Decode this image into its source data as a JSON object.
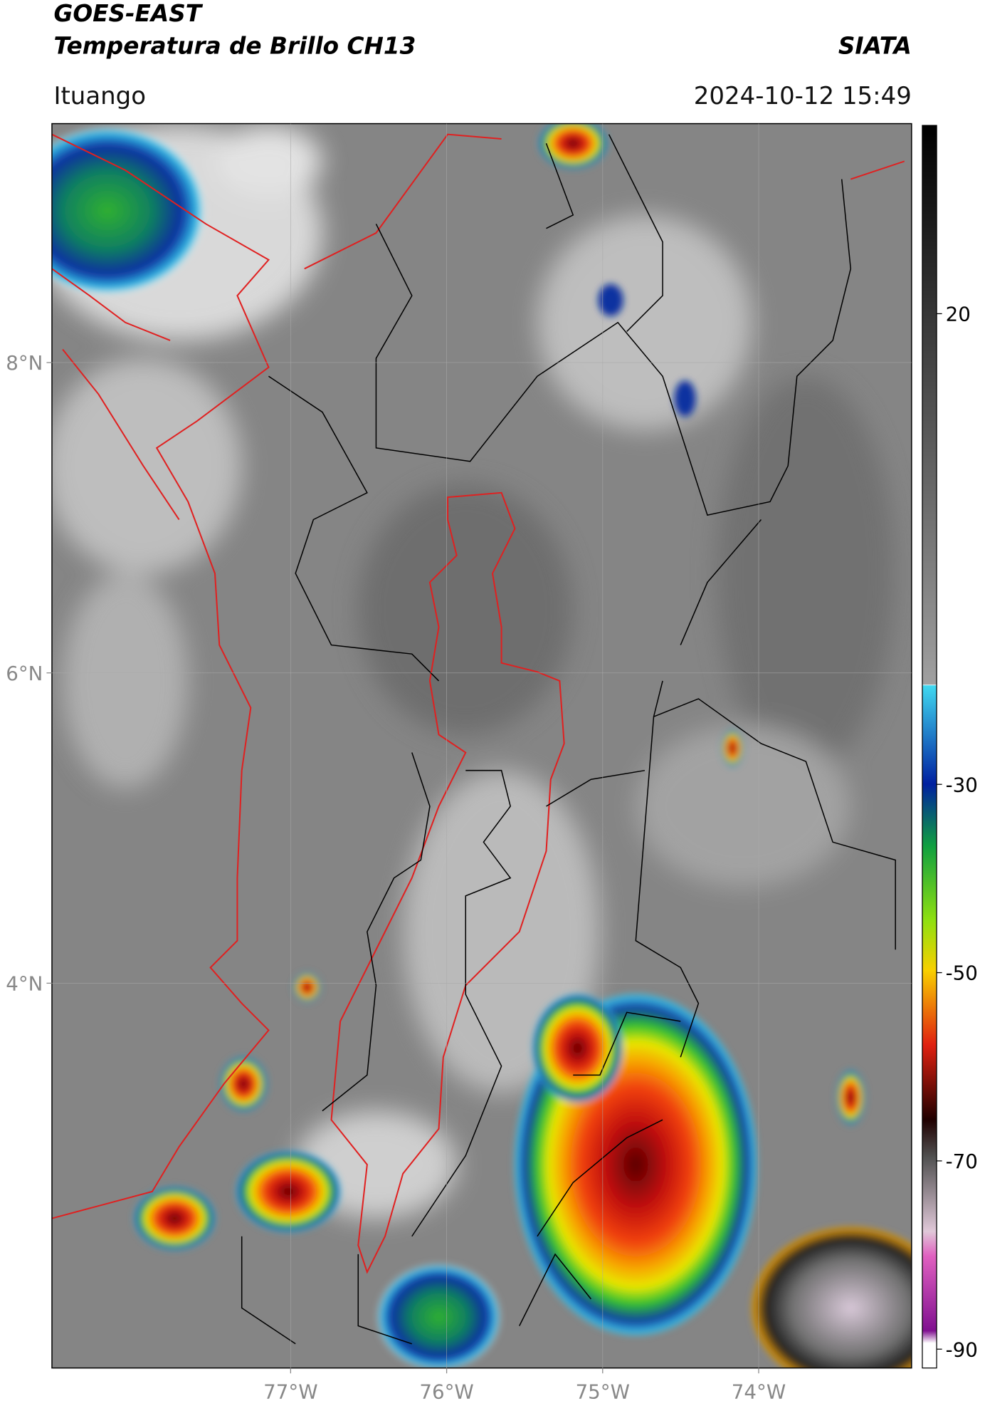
{
  "header": {
    "title": "GOES-EAST",
    "subtitle": "Temperatura de Brillo CH13",
    "source": "SIATA",
    "region": "Ituango",
    "timestamp": "2024-10-12 15:49"
  },
  "map": {
    "lon_range": [
      -78.53,
      -73.02
    ],
    "lat_range": [
      1.52,
      9.54
    ],
    "lon_ticks": [
      {
        "value": -77,
        "label": "77°W"
      },
      {
        "value": -76,
        "label": "76°W"
      },
      {
        "value": -75,
        "label": "75°W"
      },
      {
        "value": -74,
        "label": "74°W"
      }
    ],
    "lat_ticks": [
      {
        "value": 8,
        "label": "8°N"
      },
      {
        "value": 6,
        "label": "6°N"
      },
      {
        "value": 4,
        "label": "4°N"
      }
    ]
  },
  "colorbar": {
    "range": [
      -92,
      40
    ],
    "ticks": [
      20,
      -30,
      -50,
      -70,
      -90
    ]
  }
}
